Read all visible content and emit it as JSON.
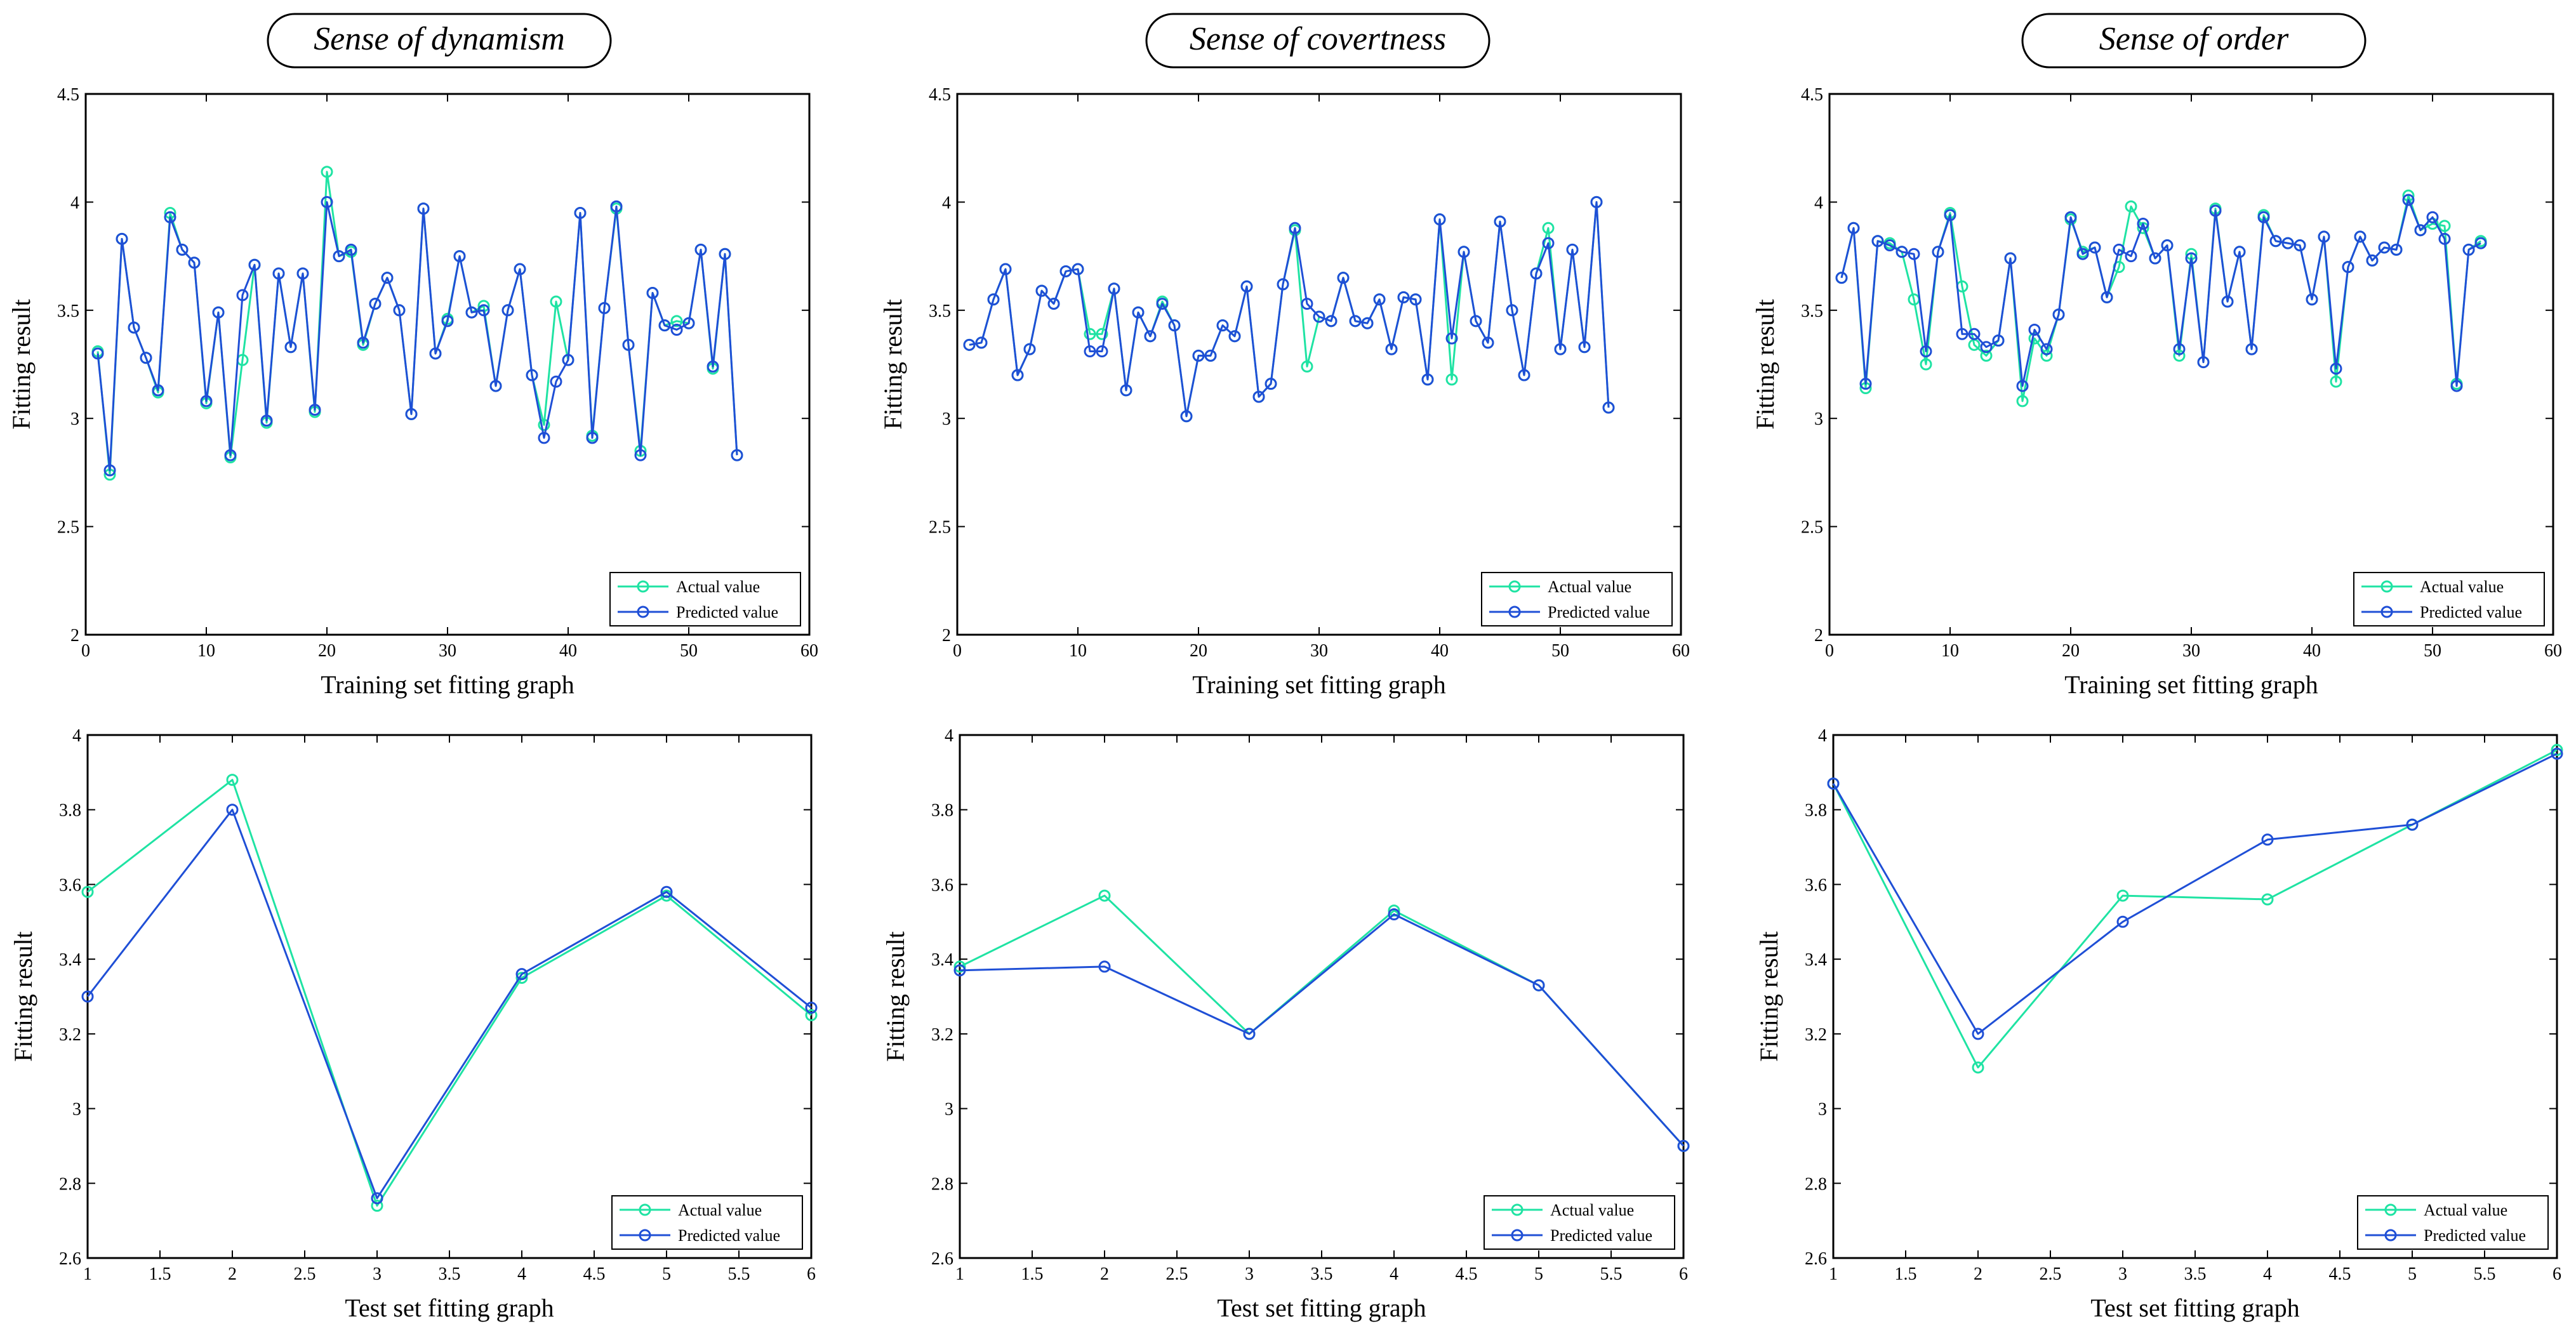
{
  "colors": {
    "actual": "#1fe3a3",
    "predicted": "#1f4fd6",
    "axis": "#000000"
  },
  "chart_data": [
    {
      "type": "line",
      "panel_title": "Sense of dynamism",
      "xlabel": "Training set fitting graph",
      "ylabel": "Fitting result",
      "xlim": [
        0,
        60
      ],
      "ylim": [
        2,
        4.5
      ],
      "xticks": [
        0,
        10,
        20,
        30,
        40,
        50,
        60
      ],
      "yticks": [
        2,
        2.5,
        3,
        3.5,
        4,
        4.5
      ],
      "legend": "bottom-right",
      "series": [
        {
          "name": "Actual value",
          "x": [
            1,
            2,
            3,
            4,
            5,
            6,
            7,
            8,
            9,
            10,
            11,
            12,
            13,
            14,
            15,
            16,
            17,
            18,
            19,
            20,
            21,
            22,
            23,
            24,
            25,
            26,
            27,
            28,
            29,
            30,
            31,
            32,
            33,
            34,
            35,
            36,
            37,
            38,
            39,
            40,
            41,
            42,
            43,
            44,
            45,
            46,
            47,
            48,
            49,
            50,
            51,
            52,
            53,
            54
          ],
          "y": [
            3.31,
            2.74,
            3.83,
            3.42,
            3.28,
            3.12,
            3.95,
            3.78,
            3.72,
            3.07,
            3.49,
            2.82,
            3.27,
            3.71,
            2.98,
            3.67,
            3.33,
            3.67,
            3.03,
            4.14,
            3.75,
            3.77,
            3.34,
            3.53,
            3.65,
            3.5,
            3.02,
            3.97,
            3.3,
            3.46,
            3.75,
            3.49,
            3.52,
            3.15,
            3.5,
            3.69,
            3.2,
            2.97,
            3.54,
            3.27,
            3.95,
            2.92,
            3.51,
            3.97,
            3.34,
            2.85,
            3.58,
            3.43,
            3.45,
            3.44,
            3.78,
            3.23,
            3.76,
            2.83
          ]
        },
        {
          "name": "Predicted value",
          "x": [
            1,
            2,
            3,
            4,
            5,
            6,
            7,
            8,
            9,
            10,
            11,
            12,
            13,
            14,
            15,
            16,
            17,
            18,
            19,
            20,
            21,
            22,
            23,
            24,
            25,
            26,
            27,
            28,
            29,
            30,
            31,
            32,
            33,
            34,
            35,
            36,
            37,
            38,
            39,
            40,
            41,
            42,
            43,
            44,
            45,
            46,
            47,
            48,
            49,
            50,
            51,
            52,
            53,
            54
          ],
          "y": [
            3.3,
            2.76,
            3.83,
            3.42,
            3.28,
            3.13,
            3.93,
            3.78,
            3.72,
            3.08,
            3.49,
            2.83,
            3.57,
            3.71,
            2.99,
            3.67,
            3.33,
            3.67,
            3.04,
            4.0,
            3.75,
            3.78,
            3.35,
            3.53,
            3.65,
            3.5,
            3.02,
            3.97,
            3.3,
            3.45,
            3.75,
            3.49,
            3.5,
            3.15,
            3.5,
            3.69,
            3.2,
            2.91,
            3.17,
            3.27,
            3.95,
            2.91,
            3.51,
            3.98,
            3.34,
            2.83,
            3.58,
            3.43,
            3.41,
            3.44,
            3.78,
            3.24,
            3.76,
            2.83
          ]
        }
      ]
    },
    {
      "type": "line",
      "panel_title": "Sense of covertness",
      "xlabel": "Training set fitting graph",
      "ylabel": "Fitting result",
      "xlim": [
        0,
        60
      ],
      "ylim": [
        2,
        4.5
      ],
      "xticks": [
        0,
        10,
        20,
        30,
        40,
        50,
        60
      ],
      "yticks": [
        2,
        2.5,
        3,
        3.5,
        4,
        4.5
      ],
      "legend": "bottom-right",
      "series": [
        {
          "name": "Actual value",
          "x": [
            1,
            2,
            3,
            4,
            5,
            6,
            7,
            8,
            9,
            10,
            11,
            12,
            13,
            14,
            15,
            16,
            17,
            18,
            19,
            20,
            21,
            22,
            23,
            24,
            25,
            26,
            27,
            28,
            29,
            30,
            31,
            32,
            33,
            34,
            35,
            36,
            37,
            38,
            39,
            40,
            41,
            42,
            43,
            44,
            45,
            46,
            47,
            48,
            49,
            50,
            51,
            52,
            53,
            54
          ],
          "y": [
            3.34,
            3.35,
            3.55,
            3.69,
            3.2,
            3.32,
            3.59,
            3.53,
            3.68,
            3.69,
            3.39,
            3.39,
            3.6,
            3.13,
            3.49,
            3.38,
            3.54,
            3.43,
            3.01,
            3.29,
            3.29,
            3.43,
            3.38,
            3.61,
            3.1,
            3.16,
            3.62,
            3.87,
            3.24,
            3.47,
            3.45,
            3.65,
            3.45,
            3.44,
            3.55,
            3.32,
            3.56,
            3.55,
            3.18,
            3.92,
            3.18,
            3.77,
            3.45,
            3.35,
            3.91,
            3.5,
            3.2,
            3.67,
            3.88,
            3.32,
            3.78,
            3.33,
            4.0,
            3.05
          ]
        },
        {
          "name": "Predicted value",
          "x": [
            1,
            2,
            3,
            4,
            5,
            6,
            7,
            8,
            9,
            10,
            11,
            12,
            13,
            14,
            15,
            16,
            17,
            18,
            19,
            20,
            21,
            22,
            23,
            24,
            25,
            26,
            27,
            28,
            29,
            30,
            31,
            32,
            33,
            34,
            35,
            36,
            37,
            38,
            39,
            40,
            41,
            42,
            43,
            44,
            45,
            46,
            47,
            48,
            49,
            50,
            51,
            52,
            53,
            54
          ],
          "y": [
            3.34,
            3.35,
            3.55,
            3.69,
            3.2,
            3.32,
            3.59,
            3.53,
            3.68,
            3.69,
            3.31,
            3.31,
            3.6,
            3.13,
            3.49,
            3.38,
            3.53,
            3.43,
            3.01,
            3.29,
            3.29,
            3.43,
            3.38,
            3.61,
            3.1,
            3.16,
            3.62,
            3.88,
            3.53,
            3.47,
            3.45,
            3.65,
            3.45,
            3.44,
            3.55,
            3.32,
            3.56,
            3.55,
            3.18,
            3.92,
            3.37,
            3.77,
            3.45,
            3.35,
            3.91,
            3.5,
            3.2,
            3.67,
            3.81,
            3.32,
            3.78,
            3.33,
            4.0,
            3.05
          ]
        }
      ]
    },
    {
      "type": "line",
      "panel_title": "Sense of order",
      "xlabel": "Training set fitting graph",
      "ylabel": "Fitting result",
      "xlim": [
        0,
        60
      ],
      "ylim": [
        2,
        4.5
      ],
      "xticks": [
        0,
        10,
        20,
        30,
        40,
        50,
        60
      ],
      "yticks": [
        2,
        2.5,
        3,
        3.5,
        4,
        4.5
      ],
      "legend": "bottom-right",
      "series": [
        {
          "name": "Actual value",
          "x": [
            1,
            2,
            3,
            4,
            5,
            6,
            7,
            8,
            9,
            10,
            11,
            12,
            13,
            14,
            15,
            16,
            17,
            18,
            19,
            20,
            21,
            22,
            23,
            24,
            25,
            26,
            27,
            28,
            29,
            30,
            31,
            32,
            33,
            34,
            35,
            36,
            37,
            38,
            39,
            40,
            41,
            42,
            43,
            44,
            45,
            46,
            47,
            48,
            49,
            50,
            51,
            52,
            53,
            54
          ],
          "y": [
            3.65,
            3.88,
            3.14,
            3.82,
            3.81,
            3.77,
            3.55,
            3.25,
            3.77,
            3.95,
            3.61,
            3.34,
            3.29,
            3.36,
            3.74,
            3.08,
            3.37,
            3.29,
            3.48,
            3.92,
            3.77,
            3.79,
            3.56,
            3.7,
            3.98,
            3.88,
            3.74,
            3.8,
            3.29,
            3.76,
            3.26,
            3.97,
            3.54,
            3.77,
            3.32,
            3.94,
            3.82,
            3.81,
            3.8,
            3.55,
            3.84,
            3.17,
            3.7,
            3.84,
            3.73,
            3.79,
            3.78,
            4.03,
            3.87,
            3.9,
            3.89,
            3.16,
            3.78,
            3.82
          ]
        },
        {
          "name": "Predicted value",
          "x": [
            1,
            2,
            3,
            4,
            5,
            6,
            7,
            8,
            9,
            10,
            11,
            12,
            13,
            14,
            15,
            16,
            17,
            18,
            19,
            20,
            21,
            22,
            23,
            24,
            25,
            26,
            27,
            28,
            29,
            30,
            31,
            32,
            33,
            34,
            35,
            36,
            37,
            38,
            39,
            40,
            41,
            42,
            43,
            44,
            45,
            46,
            47,
            48,
            49,
            50,
            51,
            52,
            53,
            54
          ],
          "y": [
            3.65,
            3.88,
            3.16,
            3.82,
            3.8,
            3.77,
            3.76,
            3.31,
            3.77,
            3.94,
            3.39,
            3.39,
            3.33,
            3.36,
            3.74,
            3.15,
            3.41,
            3.32,
            3.48,
            3.93,
            3.76,
            3.79,
            3.56,
            3.78,
            3.75,
            3.9,
            3.74,
            3.8,
            3.32,
            3.74,
            3.26,
            3.96,
            3.54,
            3.77,
            3.32,
            3.93,
            3.82,
            3.81,
            3.8,
            3.55,
            3.84,
            3.23,
            3.7,
            3.84,
            3.73,
            3.79,
            3.78,
            4.01,
            3.87,
            3.93,
            3.83,
            3.15,
            3.78,
            3.81
          ]
        }
      ]
    },
    {
      "type": "line",
      "panel_title": "",
      "xlabel": "Test set fitting graph",
      "ylabel": "Fitting result",
      "xlim": [
        1,
        6
      ],
      "ylim": [
        2.6,
        4
      ],
      "xticks": [
        1,
        1.5,
        2,
        2.5,
        3,
        3.5,
        4,
        4.5,
        5,
        5.5,
        6
      ],
      "yticks": [
        2.6,
        2.8,
        3,
        3.2,
        3.4,
        3.6,
        3.8,
        4
      ],
      "legend": "bottom-right",
      "series": [
        {
          "name": "Actual value",
          "x": [
            1,
            2,
            3,
            4,
            5,
            6
          ],
          "y": [
            3.58,
            3.88,
            2.74,
            3.35,
            3.57,
            3.25
          ]
        },
        {
          "name": "Predicted value",
          "x": [
            1,
            2,
            3,
            4,
            5,
            6
          ],
          "y": [
            3.3,
            3.8,
            2.76,
            3.36,
            3.58,
            3.27
          ]
        }
      ]
    },
    {
      "type": "line",
      "panel_title": "",
      "xlabel": "Test set fitting graph",
      "ylabel": "Fitting result",
      "xlim": [
        1,
        6
      ],
      "ylim": [
        2.6,
        4
      ],
      "xticks": [
        1,
        1.5,
        2,
        2.5,
        3,
        3.5,
        4,
        4.5,
        5,
        5.5,
        6
      ],
      "yticks": [
        2.6,
        2.8,
        3,
        3.2,
        3.4,
        3.6,
        3.8,
        4
      ],
      "legend": "bottom-right",
      "series": [
        {
          "name": "Actual value",
          "x": [
            1,
            2,
            3,
            4,
            5,
            6
          ],
          "y": [
            3.38,
            3.57,
            3.2,
            3.53,
            3.33,
            2.9
          ]
        },
        {
          "name": "Predicted value",
          "x": [
            1,
            2,
            3,
            4,
            5,
            6
          ],
          "y": [
            3.37,
            3.38,
            3.2,
            3.52,
            3.33,
            2.9
          ]
        }
      ]
    },
    {
      "type": "line",
      "panel_title": "",
      "xlabel": "Test set fitting graph",
      "ylabel": "Fitting result",
      "xlim": [
        1,
        6
      ],
      "ylim": [
        2.6,
        4
      ],
      "xticks": [
        1,
        1.5,
        2,
        2.5,
        3,
        3.5,
        4,
        4.5,
        5,
        5.5,
        6
      ],
      "yticks": [
        2.6,
        2.8,
        3,
        3.2,
        3.4,
        3.6,
        3.8,
        4
      ],
      "legend": "bottom-right",
      "series": [
        {
          "name": "Actual value",
          "x": [
            1,
            2,
            3,
            4,
            5,
            6
          ],
          "y": [
            3.87,
            3.11,
            3.57,
            3.56,
            3.76,
            3.96
          ]
        },
        {
          "name": "Predicted value",
          "x": [
            1,
            2,
            3,
            4,
            5,
            6
          ],
          "y": [
            3.87,
            3.2,
            3.5,
            3.72,
            3.76,
            3.95
          ]
        }
      ]
    }
  ]
}
